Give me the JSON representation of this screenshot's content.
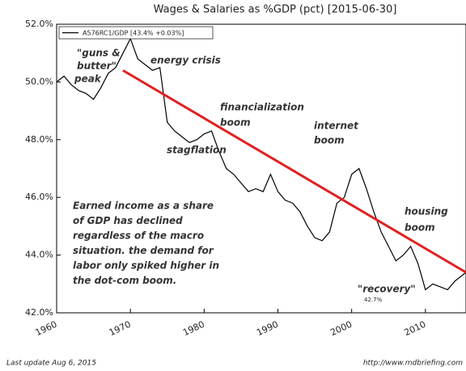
{
  "chart_data": {
    "type": "line",
    "title": "Wages & Salaries as %GDP (pct) [2015-06-30]",
    "x": [
      1960,
      1961,
      1962,
      1963,
      1964,
      1965,
      1966,
      1967,
      1968,
      1969,
      1970,
      1971,
      1972,
      1973,
      1974,
      1975,
      1976,
      1977,
      1978,
      1979,
      1980,
      1981,
      1982,
      1983,
      1984,
      1985,
      1986,
      1987,
      1988,
      1989,
      1990,
      1991,
      1992,
      1993,
      1994,
      1995,
      1996,
      1997,
      1998,
      1999,
      2000,
      2001,
      2002,
      2003,
      2004,
      2005,
      2006,
      2007,
      2008,
      2009,
      2010,
      2011,
      2012,
      2013,
      2014,
      2015.5
    ],
    "series": [
      {
        "name": "A576RC1/GDP [43.4% +0.03%]",
        "color": "#000000",
        "values": [
          50.0,
          50.2,
          49.9,
          49.7,
          49.6,
          49.4,
          49.8,
          50.3,
          50.5,
          51.0,
          51.5,
          50.8,
          50.6,
          50.4,
          50.5,
          48.6,
          48.3,
          48.1,
          47.9,
          48.0,
          48.2,
          48.3,
          47.6,
          47.0,
          46.8,
          46.5,
          46.2,
          46.3,
          46.2,
          46.8,
          46.2,
          45.9,
          45.8,
          45.5,
          45.0,
          44.6,
          44.5,
          44.8,
          45.8,
          46.0,
          46.8,
          47.0,
          46.3,
          45.5,
          44.8,
          44.3,
          43.8,
          44.0,
          44.3,
          43.7,
          42.8,
          43.0,
          42.9,
          42.8,
          43.1,
          43.4
        ]
      }
    ],
    "trend": {
      "color": "#e02020",
      "x": [
        1969,
        2015.5
      ],
      "values": [
        50.4,
        43.4
      ]
    },
    "xlim": [
      1960,
      2015.5
    ],
    "xticks": [
      1960,
      1970,
      1980,
      1990,
      2000,
      2010
    ],
    "ylim": [
      42,
      52
    ],
    "yticks": [
      {
        "value": 42,
        "label": "42.0%"
      },
      {
        "value": 44,
        "label": "44.0%"
      },
      {
        "value": 46,
        "label": "46.0%"
      },
      {
        "value": 48,
        "label": "48.0%"
      },
      {
        "value": 50,
        "label": "50.0%"
      },
      {
        "value": 52,
        "label": "52.0%"
      }
    ],
    "annotations": [
      [
        "\"guns &",
        "butter\"",
        "peak"
      ],
      [
        "energy crisis"
      ],
      [
        "financialization",
        "boom"
      ],
      [
        "stagflation"
      ],
      [
        "internet",
        "boom"
      ],
      [
        "housing",
        "boom"
      ],
      [
        "\"recovery\""
      ],
      [
        "Earned income as a share",
        "of GDP has declined",
        "regardless of the macro",
        "situation. the demand for",
        "labor only spiked higher in",
        "the dot-com boom."
      ],
      [
        "42.7%"
      ]
    ],
    "footer_left": "Last update Aug  6, 2015",
    "footer_right": "http://www.mdbriefing.com"
  }
}
